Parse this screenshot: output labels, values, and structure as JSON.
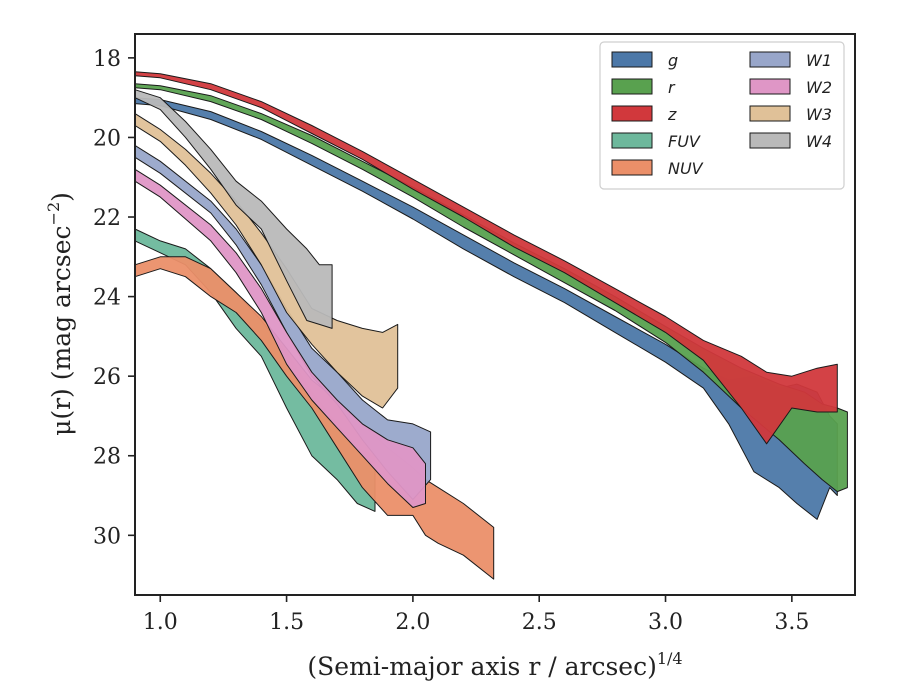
{
  "chart_data": {
    "type": "area",
    "xlabel": "(Semi-major axis r / arcsec)",
    "xlabel_exponent": "1/4",
    "ylabel": "μ(r) (mag arcsec",
    "ylabel_exponent": "−2",
    "ylabel_close": ")",
    "xlim": [
      0.9,
      3.75
    ],
    "ylim": [
      31.5,
      17.4
    ],
    "y_inverted": true,
    "xticks": [
      1.0,
      1.5,
      2.0,
      2.5,
      3.0,
      3.5
    ],
    "xtick_labels": [
      "1.0",
      "1.5",
      "2.0",
      "2.5",
      "3.0",
      "3.5"
    ],
    "yticks": [
      18,
      20,
      22,
      24,
      26,
      28,
      30
    ],
    "ytick_labels": [
      "18",
      "20",
      "22",
      "24",
      "26",
      "28",
      "30"
    ],
    "grid": false,
    "legend": {
      "position": "top-right",
      "columns": 2
    },
    "series": [
      {
        "name": "g",
        "color": "#4c78a8",
        "points": [
          [
            0.9,
            19.0,
            19.15
          ],
          [
            1.0,
            19.05,
            19.2
          ],
          [
            1.2,
            19.35,
            19.55
          ],
          [
            1.4,
            19.85,
            20.05
          ],
          [
            1.6,
            20.45,
            20.7
          ],
          [
            1.8,
            21.1,
            21.35
          ],
          [
            2.0,
            21.75,
            22.05
          ],
          [
            2.2,
            22.45,
            22.8
          ],
          [
            2.4,
            23.15,
            23.5
          ],
          [
            2.6,
            23.8,
            24.15
          ],
          [
            2.8,
            24.5,
            24.9
          ],
          [
            3.0,
            25.2,
            25.65
          ],
          [
            3.15,
            25.8,
            26.3
          ],
          [
            3.25,
            26.1,
            27.2
          ],
          [
            3.35,
            26.0,
            28.4
          ],
          [
            3.45,
            26.3,
            28.8
          ],
          [
            3.52,
            26.2,
            29.2
          ],
          [
            3.6,
            26.4,
            29.6
          ],
          [
            3.65,
            27.0,
            28.8
          ],
          [
            3.68,
            27.2,
            29.0
          ]
        ]
      },
      {
        "name": "r",
        "color": "#59a14f",
        "points": [
          [
            0.9,
            18.65,
            18.75
          ],
          [
            1.0,
            18.7,
            18.8
          ],
          [
            1.2,
            18.95,
            19.1
          ],
          [
            1.4,
            19.4,
            19.55
          ],
          [
            1.6,
            19.95,
            20.15
          ],
          [
            1.8,
            20.6,
            20.8
          ],
          [
            2.0,
            21.25,
            21.5
          ],
          [
            2.2,
            21.95,
            22.25
          ],
          [
            2.4,
            22.65,
            22.95
          ],
          [
            2.6,
            23.3,
            23.65
          ],
          [
            2.8,
            24.0,
            24.35
          ],
          [
            3.0,
            24.75,
            25.15
          ],
          [
            3.15,
            25.3,
            25.9
          ],
          [
            3.3,
            25.8,
            26.8
          ],
          [
            3.45,
            26.2,
            27.6
          ],
          [
            3.55,
            26.4,
            28.2
          ],
          [
            3.62,
            26.7,
            28.6
          ],
          [
            3.68,
            26.8,
            28.9
          ],
          [
            3.72,
            26.9,
            28.8
          ]
        ]
      },
      {
        "name": "z",
        "color": "#d1383c",
        "points": [
          [
            0.9,
            18.35,
            18.45
          ],
          [
            1.0,
            18.4,
            18.5
          ],
          [
            1.2,
            18.65,
            18.8
          ],
          [
            1.4,
            19.1,
            19.25
          ],
          [
            1.6,
            19.7,
            19.9
          ],
          [
            1.8,
            20.35,
            20.55
          ],
          [
            2.0,
            21.05,
            21.3
          ],
          [
            2.2,
            21.75,
            22.0
          ],
          [
            2.4,
            22.45,
            22.75
          ],
          [
            2.6,
            23.1,
            23.4
          ],
          [
            2.8,
            23.8,
            24.15
          ],
          [
            3.0,
            24.5,
            24.9
          ],
          [
            3.15,
            25.1,
            25.6
          ],
          [
            3.3,
            25.5,
            26.8
          ],
          [
            3.4,
            25.9,
            27.7
          ],
          [
            3.5,
            26.0,
            26.8
          ],
          [
            3.6,
            25.8,
            26.9
          ],
          [
            3.68,
            25.7,
            26.9
          ]
        ]
      },
      {
        "name": "FUV",
        "color": "#6db89c",
        "points": [
          [
            0.9,
            22.3,
            22.6
          ],
          [
            1.0,
            22.6,
            22.9
          ],
          [
            1.1,
            22.8,
            23.2
          ],
          [
            1.2,
            23.3,
            23.9
          ],
          [
            1.3,
            23.9,
            24.8
          ],
          [
            1.4,
            24.6,
            25.5
          ],
          [
            1.5,
            25.4,
            26.8
          ],
          [
            1.6,
            26.4,
            28.0
          ],
          [
            1.7,
            27.2,
            28.6
          ],
          [
            1.78,
            27.8,
            29.2
          ],
          [
            1.85,
            28.0,
            29.4
          ]
        ]
      },
      {
        "name": "NUV",
        "color": "#eb8f69",
        "points": [
          [
            0.9,
            23.2,
            23.5
          ],
          [
            1.0,
            23.0,
            23.3
          ],
          [
            1.1,
            23.0,
            23.5
          ],
          [
            1.2,
            23.3,
            24.0
          ],
          [
            1.3,
            23.9,
            24.4
          ],
          [
            1.4,
            24.5,
            25.1
          ],
          [
            1.5,
            25.3,
            26.0
          ],
          [
            1.6,
            26.1,
            26.8
          ],
          [
            1.7,
            26.6,
            27.8
          ],
          [
            1.8,
            27.2,
            28.8
          ],
          [
            1.9,
            27.8,
            29.5
          ],
          [
            2.0,
            28.3,
            29.5
          ],
          [
            2.05,
            28.6,
            30.0
          ],
          [
            2.1,
            28.8,
            30.2
          ],
          [
            2.2,
            29.2,
            30.5
          ],
          [
            2.32,
            29.8,
            31.1
          ]
        ]
      },
      {
        "name": "W1",
        "color": "#98a6ca",
        "points": [
          [
            0.9,
            20.2,
            20.5
          ],
          [
            1.0,
            20.6,
            20.9
          ],
          [
            1.2,
            21.6,
            21.9
          ],
          [
            1.3,
            22.3,
            22.7
          ],
          [
            1.4,
            23.2,
            23.7
          ],
          [
            1.5,
            24.3,
            24.9
          ],
          [
            1.6,
            25.3,
            26.0
          ],
          [
            1.7,
            25.9,
            26.7
          ],
          [
            1.8,
            26.6,
            27.6
          ],
          [
            1.9,
            27.1,
            28.4
          ],
          [
            2.0,
            27.2,
            29.1
          ],
          [
            2.07,
            27.4,
            28.6
          ]
        ]
      },
      {
        "name": "W2",
        "color": "#df96c6",
        "points": [
          [
            0.9,
            20.8,
            21.1
          ],
          [
            1.0,
            21.2,
            21.5
          ],
          [
            1.2,
            22.2,
            22.6
          ],
          [
            1.3,
            22.9,
            23.4
          ],
          [
            1.4,
            23.8,
            24.4
          ],
          [
            1.5,
            24.9,
            25.7
          ],
          [
            1.6,
            25.9,
            26.6
          ],
          [
            1.7,
            26.6,
            27.3
          ],
          [
            1.8,
            27.2,
            28.0
          ],
          [
            1.9,
            27.6,
            28.7
          ],
          [
            2.0,
            27.8,
            29.3
          ],
          [
            2.05,
            28.2,
            29.2
          ]
        ]
      },
      {
        "name": "W3",
        "color": "#e0c198",
        "points": [
          [
            0.9,
            19.4,
            19.7
          ],
          [
            1.0,
            19.8,
            20.1
          ],
          [
            1.1,
            20.3,
            20.7
          ],
          [
            1.2,
            20.9,
            21.4
          ],
          [
            1.3,
            21.6,
            22.2
          ],
          [
            1.4,
            22.4,
            23.2
          ],
          [
            1.5,
            23.3,
            24.4
          ],
          [
            1.6,
            24.3,
            25.2
          ],
          [
            1.7,
            24.6,
            25.9
          ],
          [
            1.8,
            24.8,
            26.5
          ],
          [
            1.88,
            24.9,
            26.8
          ],
          [
            1.94,
            24.7,
            26.3
          ]
        ]
      },
      {
        "name": "W4",
        "color": "#b9b9b9",
        "points": [
          [
            0.9,
            18.8,
            19.0
          ],
          [
            1.0,
            19.0,
            19.3
          ],
          [
            1.1,
            19.6,
            20.0
          ],
          [
            1.2,
            20.3,
            20.8
          ],
          [
            1.3,
            21.1,
            21.7
          ],
          [
            1.4,
            21.6,
            22.3
          ],
          [
            1.5,
            22.3,
            23.6
          ],
          [
            1.58,
            22.8,
            24.6
          ],
          [
            1.63,
            23.2,
            24.7
          ],
          [
            1.68,
            23.2,
            24.8
          ]
        ]
      }
    ]
  }
}
